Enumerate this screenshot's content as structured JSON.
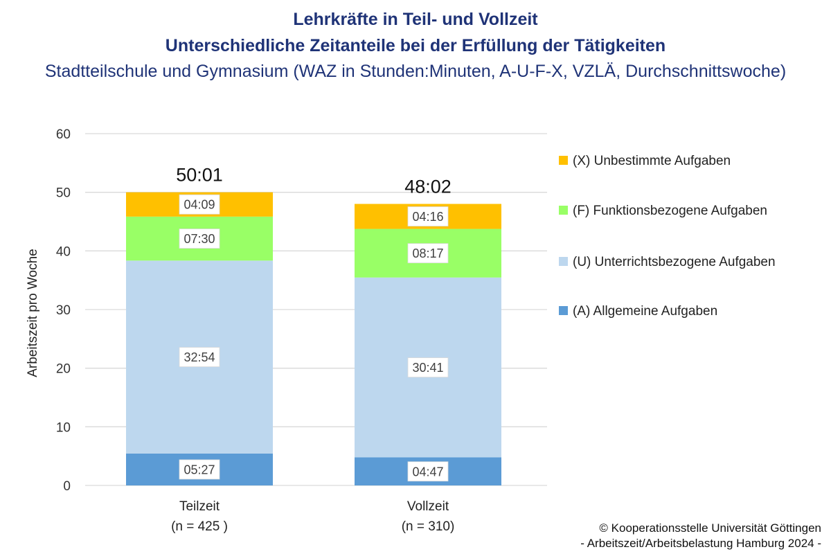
{
  "header": {
    "title": "Lehrkräfte in Teil- und Vollzeit",
    "subtitle": "Unterschiedliche Zeitanteile bei der Erfüllung der Tätigkeiten",
    "description": "Stadtteilschule und Gymnasium (WAZ in Stunden:Minuten, A-U-F-X, VZLÄ, Durchschnittswoche)"
  },
  "footer": {
    "line1": "© Kooperationsstelle Universität Göttingen",
    "line2": "- Arbeitszeit/Arbeitsbelastung Hamburg 2024 -"
  },
  "chart_data": {
    "type": "bar",
    "stacked": true,
    "title": "Lehrkräfte in Teil- und Vollzeit",
    "xlabel": "",
    "ylabel": "Arbeitszeit pro Woche",
    "ylim": [
      0,
      60
    ],
    "yticks": [
      0,
      10,
      20,
      30,
      40,
      50,
      60
    ],
    "grid": true,
    "legend_position": "right",
    "categories": [
      "Teilzeit",
      "Vollzeit"
    ],
    "category_sublabels": [
      "(n = 425 )",
      "(n = 310)"
    ],
    "totals": [
      50.0167,
      48.0333
    ],
    "total_labels": [
      "50:01",
      "48:02"
    ],
    "series": [
      {
        "name": "(A) Allgemeine Aufgaben",
        "color": "#5b9bd5",
        "values": [
          5.45,
          4.7833
        ],
        "labels": [
          "05:27",
          "04:47"
        ]
      },
      {
        "name": "(U) Unterrichtsbezogene Aufgaben",
        "color": "#bdd7ee",
        "values": [
          32.9,
          30.6833
        ],
        "labels": [
          "32:54",
          "30:41"
        ]
      },
      {
        "name": "(F) Funktionsbezogene Aufgaben",
        "color": "#99ff66",
        "values": [
          7.5,
          8.2833
        ],
        "labels": [
          "07:30",
          "08:17"
        ]
      },
      {
        "name": "(X) Unbestimmte Aufgaben",
        "color": "#ffc000",
        "values": [
          4.15,
          4.2667
        ],
        "labels": [
          "04:09",
          "04:16"
        ]
      }
    ],
    "legend_order": [
      "(X) Unbestimmte Aufgaben",
      "(F) Funktionsbezogene Aufgaben",
      "(U) Unterrichtsbezogene Aufgaben",
      "(A) Allgemeine Aufgaben"
    ]
  }
}
